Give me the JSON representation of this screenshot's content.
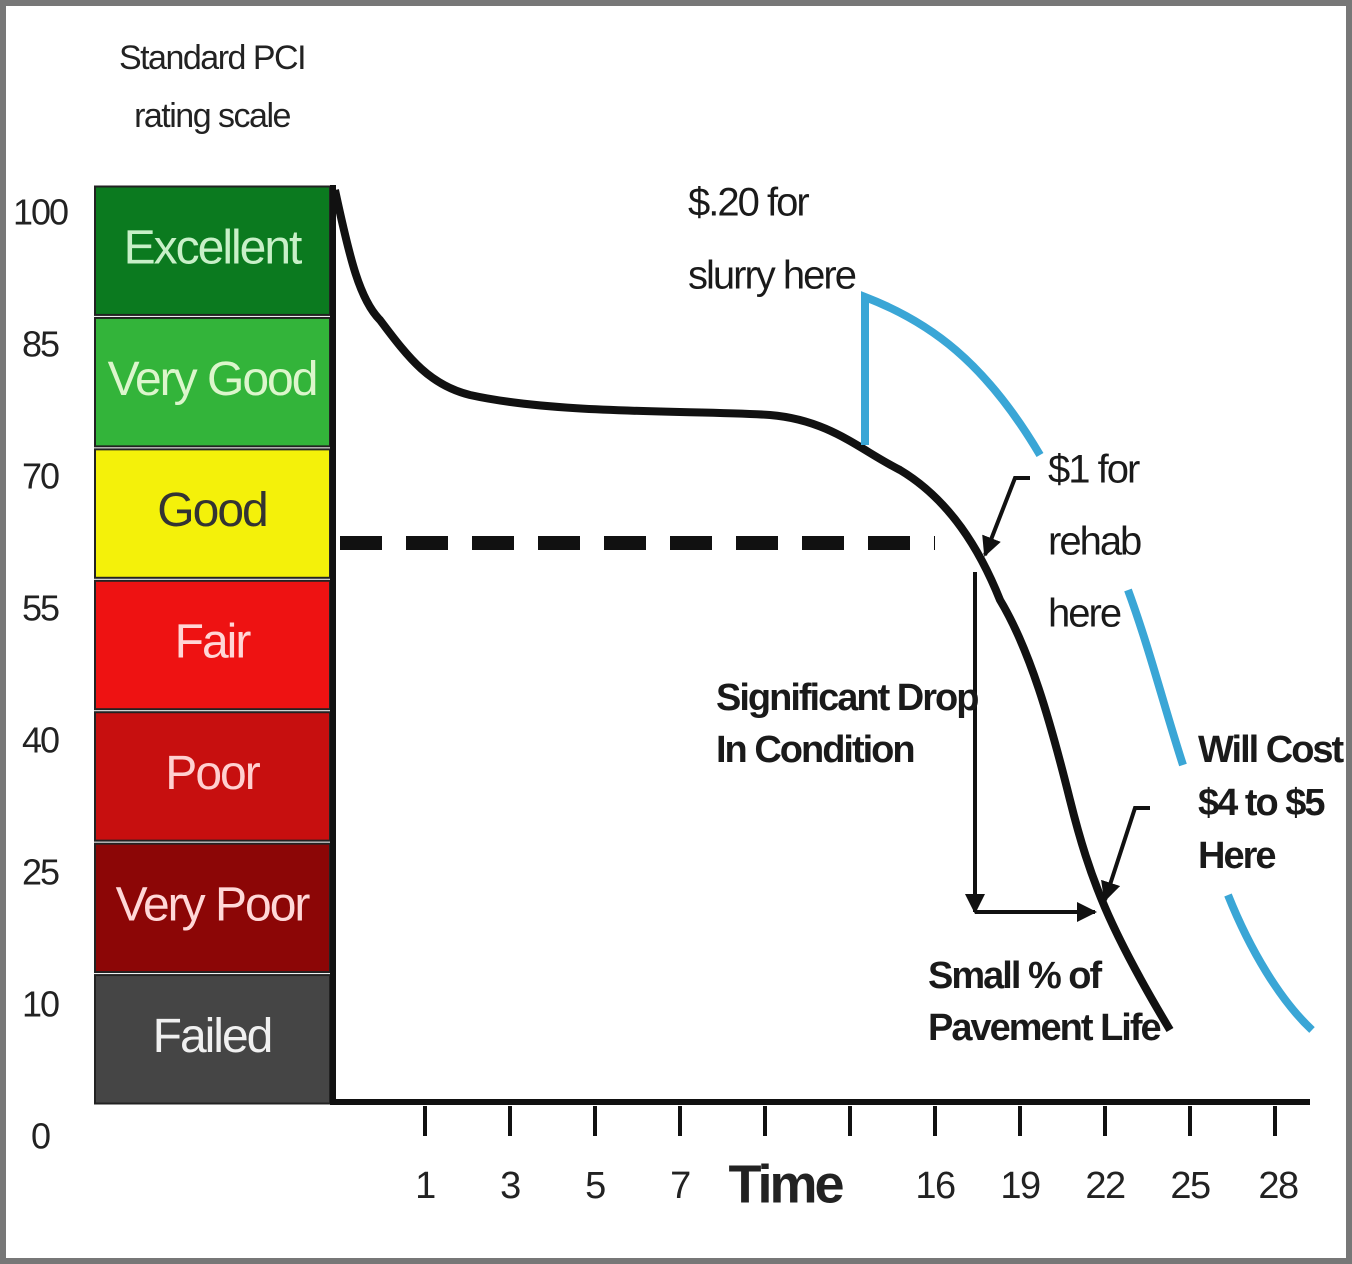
{
  "scale_title": [
    "Standard PCI",
    "rating scale"
  ],
  "ratings": [
    "Excellent",
    "Very Good",
    "Good",
    "Fair",
    "Poor",
    "Very Poor",
    "Failed"
  ],
  "y_labels": [
    100,
    85,
    70,
    55,
    40,
    25,
    10,
    0
  ],
  "x_labels": [
    1,
    3,
    5,
    7,
    "Time",
    16,
    19,
    22,
    25,
    28
  ],
  "annotations": {
    "slurry": [
      "$.20 for",
      "slurry here"
    ],
    "rehab": [
      "$1 for",
      "rehab",
      "here"
    ],
    "drop": [
      "Significant Drop",
      "In Condition"
    ],
    "life": [
      "Small % of",
      "Pavement Life"
    ],
    "cost": [
      "Will Cost",
      "$4 to $5",
      "Here"
    ]
  }
}
